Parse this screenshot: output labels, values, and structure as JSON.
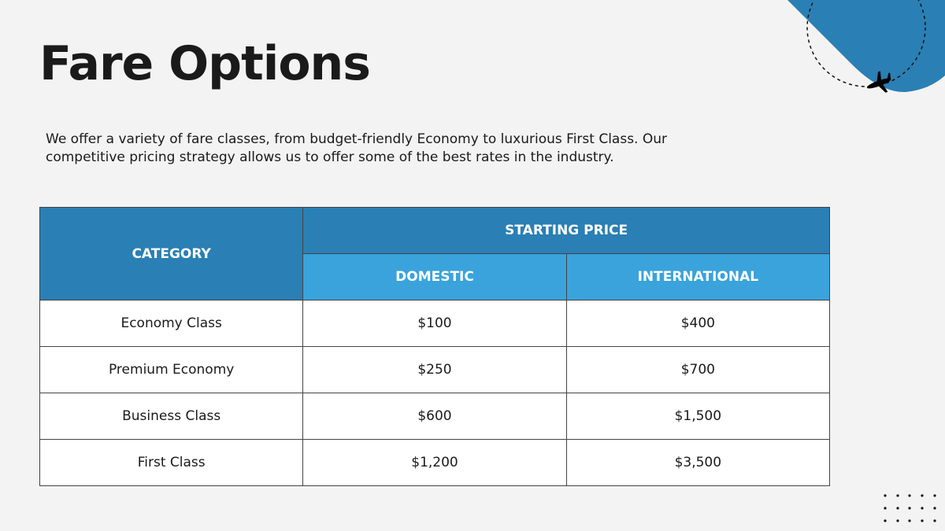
{
  "title": "Fare Options",
  "description": "We offer a variety of fare classes, from budget-friendly Economy to luxurious First Class. Our competitive pricing strategy allows us to offer some of the best rates in the industry.",
  "colors": {
    "header_dark": "#2a7fb4",
    "header_light": "#3aa3dc",
    "background": "#f3f3f3"
  },
  "decoration_icon": "airplane-icon",
  "table": {
    "category_header": "CATEGORY",
    "group_header": "STARTING PRICE",
    "columns": [
      "DOMESTIC",
      "INTERNATIONAL"
    ],
    "rows": [
      {
        "category": "Economy Class",
        "domestic": "$100",
        "international": "$400"
      },
      {
        "category": "Premium Economy",
        "domestic": "$250",
        "international": "$700"
      },
      {
        "category": "Business Class",
        "domestic": "$600",
        "international": "$1,500"
      },
      {
        "category": "First Class",
        "domestic": "$1,200",
        "international": "$3,500"
      }
    ]
  }
}
